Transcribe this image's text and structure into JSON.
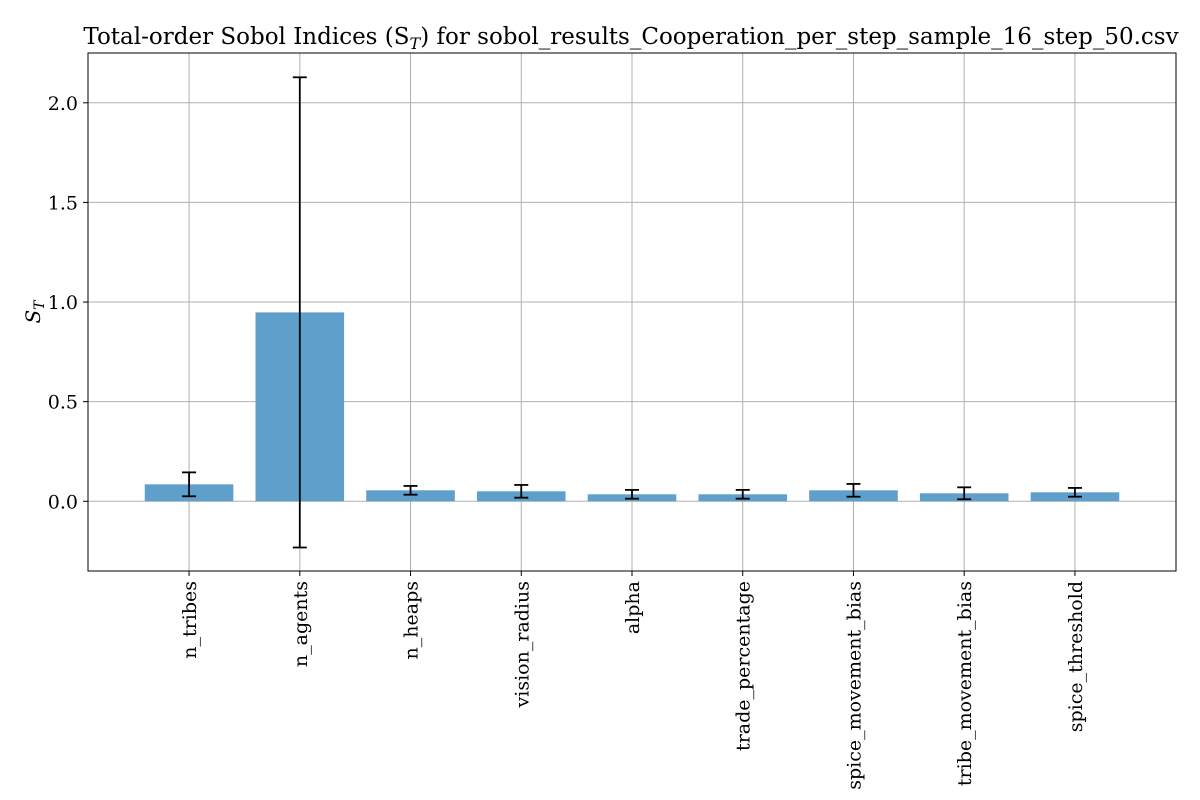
{
  "chart_data": {
    "type": "bar",
    "title": "Total-order Sobol Indices (S",
    "title_subscript": "T",
    "title_suffix": ") for sobol_results_Cooperation_per_step_sample_16_step_50.csv",
    "ylabel": "S",
    "ylabel_subscript": "T",
    "xlabel": "",
    "categories": [
      "n_tribes",
      "n_agents",
      "n_heaps",
      "vision_radius",
      "alpha",
      "trade_percentage",
      "spice_movement_bias",
      "tribe_movement_bias",
      "spice_threshold"
    ],
    "values": [
      0.085,
      0.948,
      0.055,
      0.05,
      0.035,
      0.035,
      0.055,
      0.04,
      0.045
    ],
    "error": [
      0.06,
      1.18,
      0.022,
      0.032,
      0.022,
      0.022,
      0.032,
      0.03,
      0.022
    ],
    "ylim": [
      -0.35,
      2.25
    ],
    "yticks": [
      0.0,
      0.5,
      1.0,
      1.5,
      2.0
    ],
    "ytick_labels": [
      "0.0",
      "0.5",
      "1.0",
      "1.5",
      "2.0"
    ],
    "grid": true,
    "bar_color": "#5f9fcc",
    "error_color": "#000000"
  }
}
